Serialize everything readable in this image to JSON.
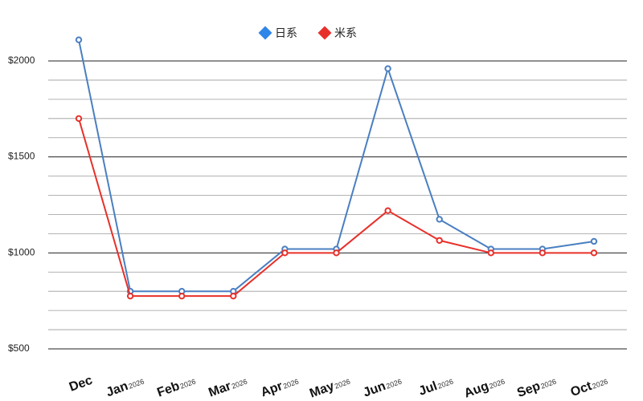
{
  "chart_data": {
    "type": "line",
    "title": "",
    "xlabel": "",
    "ylabel": "",
    "categories": [
      {
        "month": "Dec",
        "year": ""
      },
      {
        "month": "Jan",
        "year": "2026"
      },
      {
        "month": "Feb",
        "year": "2026"
      },
      {
        "month": "Mar",
        "year": "2026"
      },
      {
        "month": "Apr",
        "year": "2026"
      },
      {
        "month": "May",
        "year": "2026"
      },
      {
        "month": "Jun",
        "year": "2026"
      },
      {
        "month": "Jul",
        "year": "2026"
      },
      {
        "month": "Aug",
        "year": "2026"
      },
      {
        "month": "Sep",
        "year": "2026"
      },
      {
        "month": "Oct",
        "year": "2026"
      }
    ],
    "series": [
      {
        "name": "日系",
        "color": "#4a7fc1",
        "legend_color": "#2f86e8",
        "values": [
          2110,
          800,
          800,
          800,
          1020,
          1020,
          1960,
          1175,
          1020,
          1020,
          1060
        ]
      },
      {
        "name": "米系",
        "color": "#e8302a",
        "legend_color": "#e8302a",
        "values": [
          1700,
          775,
          775,
          775,
          1000,
          1000,
          1220,
          1065,
          1000,
          1000,
          1000
        ]
      }
    ],
    "ylim": [
      500,
      2100
    ],
    "y_ticks": [
      {
        "value": 500,
        "label": "$500"
      },
      {
        "value": 1000,
        "label": "$1000"
      },
      {
        "value": 1500,
        "label": "$1500"
      },
      {
        "value": 2000,
        "label": "$2000"
      }
    ],
    "grid": true,
    "legend_position": "top-center"
  }
}
